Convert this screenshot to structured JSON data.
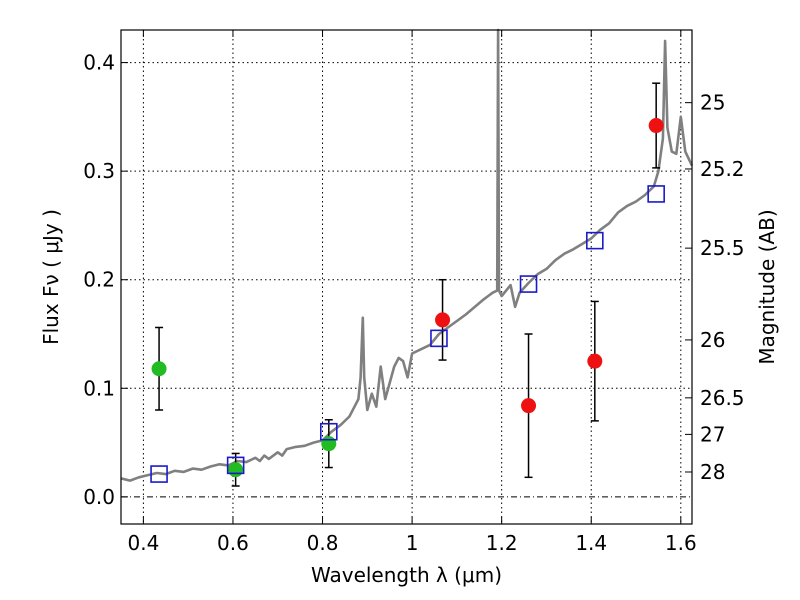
{
  "chart_data": {
    "type": "scatter",
    "title": "",
    "xlabel": "Wavelength  λ (μm)",
    "ylabel": "Flux  Fν  ( μJy )",
    "y2label": "Magnitude (AB)",
    "xlim": [
      0.35,
      1.625
    ],
    "ylim": [
      -0.025,
      0.43
    ],
    "grid": true,
    "legend": "none",
    "x_ticks": [
      {
        "value": 0.4,
        "label": "0.4"
      },
      {
        "value": 0.6,
        "label": "0.6"
      },
      {
        "value": 0.8,
        "label": "0.8"
      },
      {
        "value": 1.0,
        "label": "1"
      },
      {
        "value": 1.2,
        "label": "1.2"
      },
      {
        "value": 1.4,
        "label": "1.4"
      },
      {
        "value": 1.6,
        "label": "1.6"
      }
    ],
    "y_ticks": [
      {
        "value": 0.0,
        "label": "0.0"
      },
      {
        "value": 0.1,
        "label": "0.1"
      },
      {
        "value": 0.2,
        "label": "0.2"
      },
      {
        "value": 0.3,
        "label": "0.3"
      },
      {
        "value": 0.4,
        "label": "0.4"
      }
    ],
    "y2_ticks": [
      {
        "mag": 25,
        "label": "25"
      },
      {
        "mag": 25.2,
        "label": "25.2"
      },
      {
        "mag": 25.5,
        "label": "25.5"
      },
      {
        "mag": 26,
        "label": "26"
      },
      {
        "mag": 26.5,
        "label": "26.5"
      },
      {
        "mag": 27,
        "label": "27"
      },
      {
        "mag": 28,
        "label": "28"
      }
    ],
    "colors": {
      "optical": "#22bb22",
      "nir": "#ee1111",
      "model_points": "#1a1acc",
      "spectrum": "#808080",
      "errorbar": "#000000"
    },
    "series": [
      {
        "kind": "observed",
        "color_key": "optical",
        "points": [
          {
            "x": 0.435,
            "y": 0.118,
            "err": 0.038
          },
          {
            "x": 0.606,
            "y": 0.025,
            "err": 0.015
          },
          {
            "x": 0.814,
            "y": 0.049,
            "err": 0.022
          }
        ]
      },
      {
        "kind": "observed",
        "color_key": "nir",
        "points": [
          {
            "x": 1.068,
            "y": 0.163,
            "err": 0.037
          },
          {
            "x": 1.26,
            "y": 0.084,
            "err": 0.066
          },
          {
            "x": 1.408,
            "y": 0.125,
            "err": 0.055
          },
          {
            "x": 1.545,
            "y": 0.342,
            "err": 0.039
          }
        ]
      },
      {
        "kind": "model_photometry",
        "color_key": "model_points",
        "points": [
          {
            "x": 0.435,
            "y": 0.021
          },
          {
            "x": 0.606,
            "y": 0.029
          },
          {
            "x": 0.814,
            "y": 0.06
          },
          {
            "x": 1.06,
            "y": 0.146
          },
          {
            "x": 1.26,
            "y": 0.196
          },
          {
            "x": 1.408,
            "y": 0.236
          },
          {
            "x": 1.545,
            "y": 0.279
          }
        ]
      }
    ],
    "spectrum": [
      [
        0.35,
        0.017
      ],
      [
        0.37,
        0.015
      ],
      [
        0.39,
        0.018
      ],
      [
        0.41,
        0.02
      ],
      [
        0.43,
        0.022
      ],
      [
        0.45,
        0.021
      ],
      [
        0.47,
        0.024
      ],
      [
        0.49,
        0.023
      ],
      [
        0.51,
        0.026
      ],
      [
        0.53,
        0.025
      ],
      [
        0.55,
        0.028
      ],
      [
        0.57,
        0.03
      ],
      [
        0.59,
        0.029
      ],
      [
        0.61,
        0.033
      ],
      [
        0.63,
        0.032
      ],
      [
        0.65,
        0.036
      ],
      [
        0.66,
        0.033
      ],
      [
        0.67,
        0.038
      ],
      [
        0.68,
        0.035
      ],
      [
        0.7,
        0.041
      ],
      [
        0.71,
        0.038
      ],
      [
        0.72,
        0.044
      ],
      [
        0.74,
        0.046
      ],
      [
        0.76,
        0.047
      ],
      [
        0.78,
        0.05
      ],
      [
        0.8,
        0.052
      ],
      [
        0.82,
        0.06
      ],
      [
        0.84,
        0.066
      ],
      [
        0.86,
        0.074
      ],
      [
        0.87,
        0.082
      ],
      [
        0.88,
        0.09
      ],
      [
        0.885,
        0.11
      ],
      [
        0.89,
        0.165
      ],
      [
        0.893,
        0.11
      ],
      [
        0.9,
        0.08
      ],
      [
        0.91,
        0.095
      ],
      [
        0.92,
        0.083
      ],
      [
        0.93,
        0.12
      ],
      [
        0.94,
        0.09
      ],
      [
        0.95,
        0.105
      ],
      [
        0.96,
        0.12
      ],
      [
        0.97,
        0.128
      ],
      [
        0.98,
        0.125
      ],
      [
        0.99,
        0.11
      ],
      [
        1.0,
        0.132
      ],
      [
        1.02,
        0.136
      ],
      [
        1.04,
        0.14
      ],
      [
        1.06,
        0.15
      ],
      [
        1.08,
        0.156
      ],
      [
        1.1,
        0.162
      ],
      [
        1.12,
        0.168
      ],
      [
        1.14,
        0.175
      ],
      [
        1.16,
        0.182
      ],
      [
        1.17,
        0.185
      ],
      [
        1.18,
        0.188
      ],
      [
        1.19,
        0.19
      ],
      [
        1.192,
        0.43
      ],
      [
        1.194,
        0.19
      ],
      [
        1.2,
        0.185
      ],
      [
        1.22,
        0.195
      ],
      [
        1.23,
        0.175
      ],
      [
        1.24,
        0.188
      ],
      [
        1.26,
        0.197
      ],
      [
        1.28,
        0.205
      ],
      [
        1.3,
        0.21
      ],
      [
        1.32,
        0.218
      ],
      [
        1.34,
        0.224
      ],
      [
        1.36,
        0.228
      ],
      [
        1.38,
        0.233
      ],
      [
        1.4,
        0.238
      ],
      [
        1.42,
        0.246
      ],
      [
        1.44,
        0.252
      ],
      [
        1.46,
        0.262
      ],
      [
        1.48,
        0.268
      ],
      [
        1.5,
        0.272
      ],
      [
        1.52,
        0.278
      ],
      [
        1.54,
        0.286
      ],
      [
        1.55,
        0.3
      ],
      [
        1.56,
        0.33
      ],
      [
        1.565,
        0.42
      ],
      [
        1.57,
        0.34
      ],
      [
        1.58,
        0.318
      ],
      [
        1.59,
        0.316
      ],
      [
        1.6,
        0.35
      ],
      [
        1.61,
        0.318
      ],
      [
        1.625,
        0.305
      ]
    ]
  }
}
